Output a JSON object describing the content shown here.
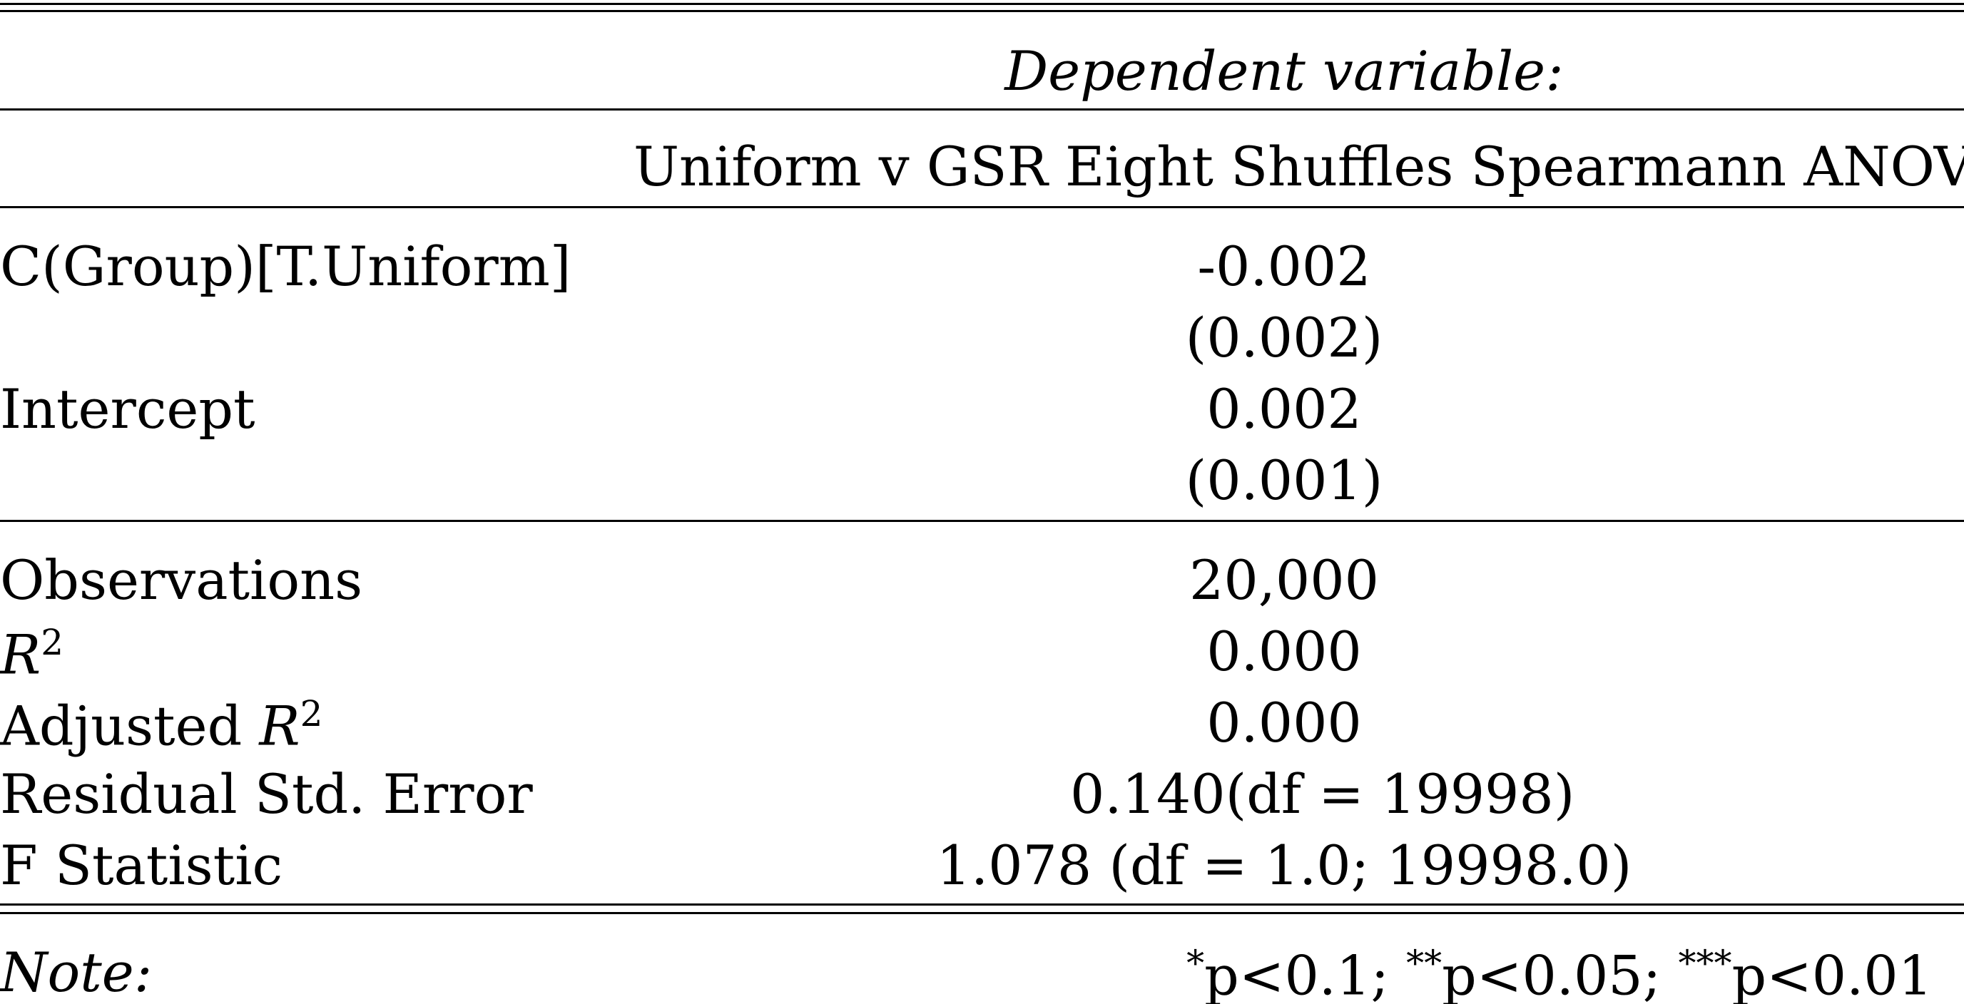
{
  "header": {
    "dependent_label": "Dependent variable:",
    "model_name": "Uniform v GSR Eight Shuffles Spearmann ANOVA"
  },
  "coefficients": [
    {
      "label": "C(Group)[T.Uniform]",
      "estimate": "-0.002",
      "se": "(0.002)"
    },
    {
      "label": "Intercept",
      "estimate": "0.002",
      "se": "(0.001)"
    }
  ],
  "stats": {
    "observations": {
      "label": "Observations",
      "value": "20,000"
    },
    "r2": {
      "label": "R",
      "sup": "2",
      "value": "0.000"
    },
    "adj_r2": {
      "label_prefix": "Adjusted ",
      "label": "R",
      "sup": "2",
      "value": "0.000"
    },
    "resid_se": {
      "label": "Residual Std. Error",
      "value": "0.140(df = 19998)"
    },
    "f_stat": {
      "label": "F Statistic",
      "value": "1.078 (df = 1.0; 19998.0)"
    }
  },
  "note": {
    "label": "Note:",
    "sig1_star": "*",
    "sig1_text": "p<0.1;",
    "sig2_star": "**",
    "sig2_text": "p<0.05;",
    "sig3_star": "***",
    "sig3_text": "p<0.01"
  }
}
